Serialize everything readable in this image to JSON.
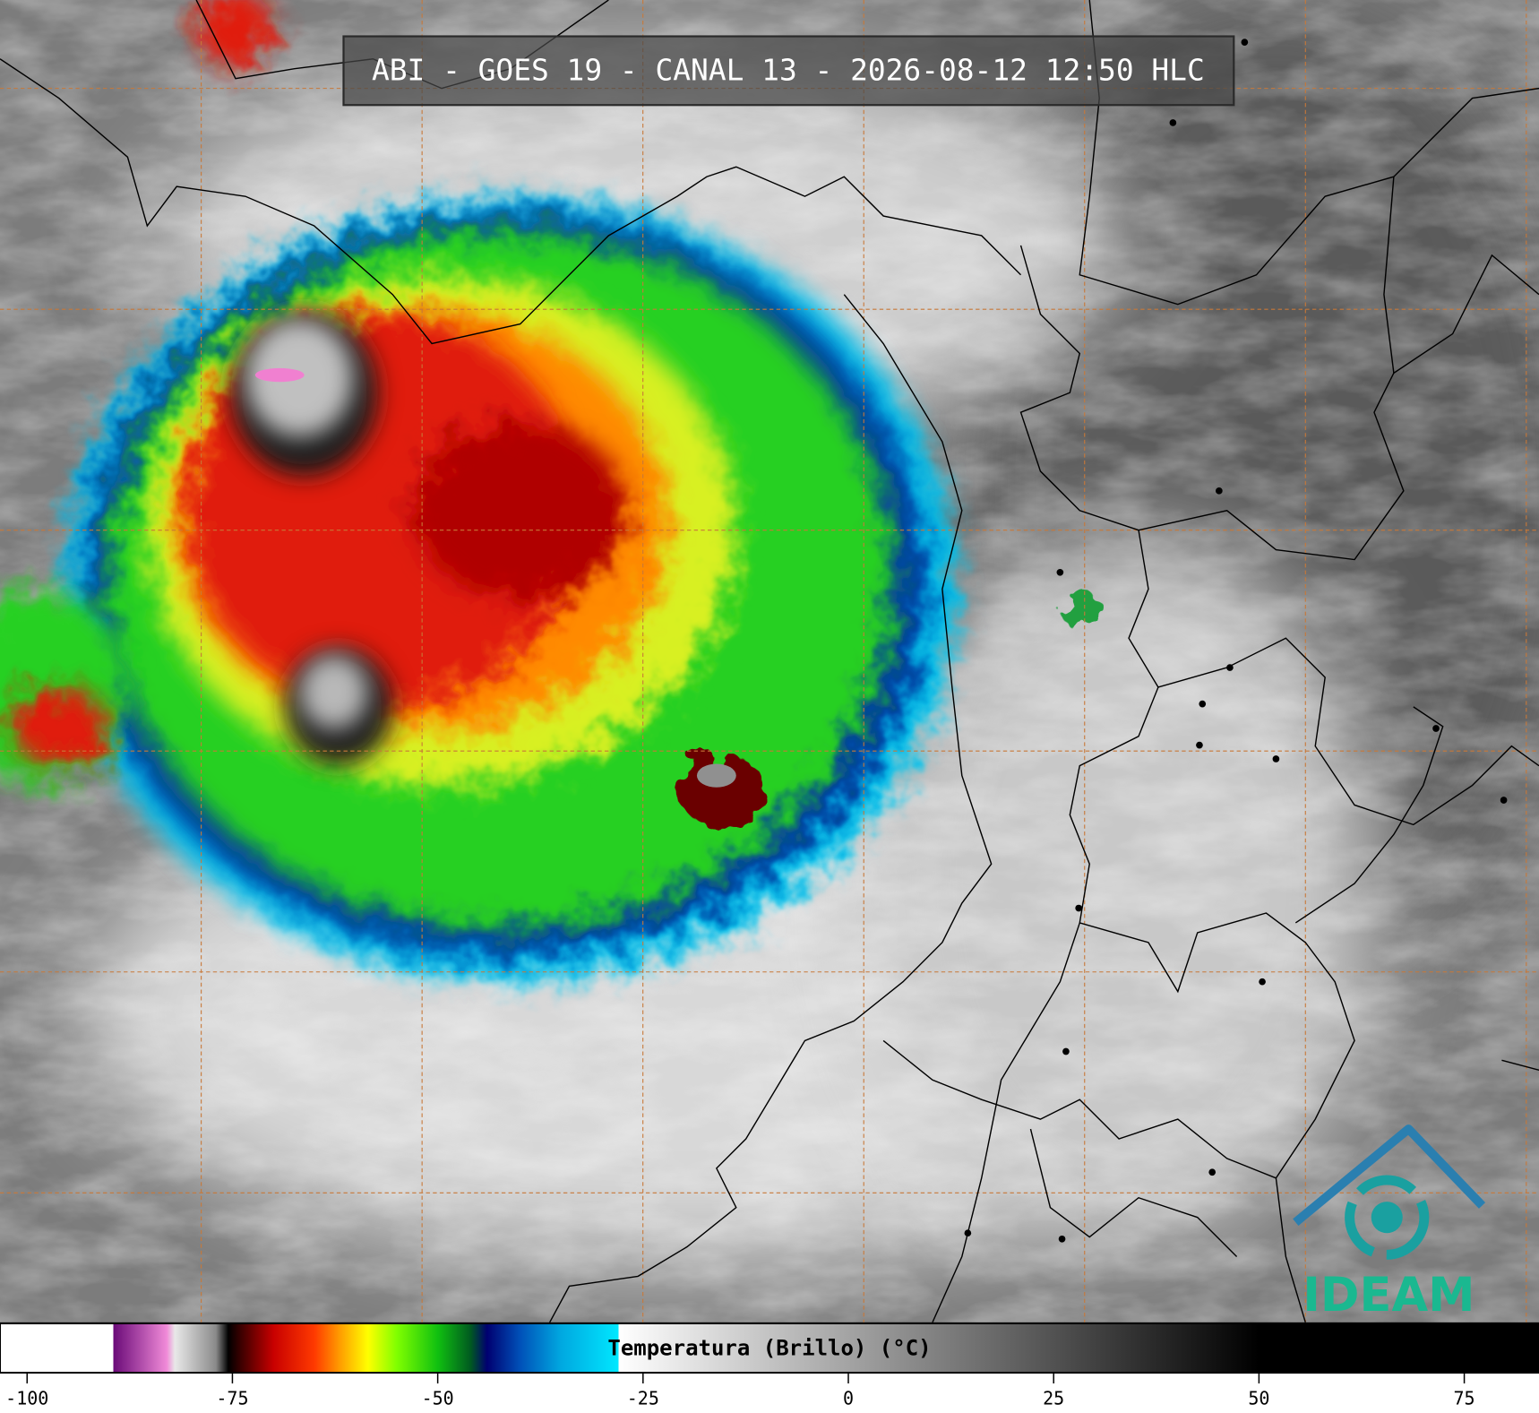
{
  "title": "ABI - GOES 19 - CANAL 13 - 2026-08-12 12:50 HLC",
  "logo": "IDEAM",
  "colorbar": {
    "label": "Temperatura (Brillo) (°C)",
    "xlim": [
      -103.3,
      84.1
    ],
    "xticks": [
      -100,
      -75,
      -50,
      -25,
      0,
      25,
      50,
      75
    ],
    "colorscale": [
      {
        "value": -103.3,
        "color": "#ffffff"
      },
      {
        "value": -89.5,
        "color": "#ffffff"
      },
      {
        "value": -89.5,
        "color": "#6a0a78"
      },
      {
        "value": -83,
        "color": "#f08ad8"
      },
      {
        "value": -82,
        "color": "#e8e8e8"
      },
      {
        "value": -77,
        "color": "#8a8a8a"
      },
      {
        "value": -75.5,
        "color": "#000000"
      },
      {
        "value": -74,
        "color": "#3a0000"
      },
      {
        "value": -70,
        "color": "#c80000"
      },
      {
        "value": -65,
        "color": "#ff3a00"
      },
      {
        "value": -62,
        "color": "#ff9a00"
      },
      {
        "value": -58.5,
        "color": "#ffff00"
      },
      {
        "value": -55,
        "color": "#80ff00"
      },
      {
        "value": -50,
        "color": "#10c010"
      },
      {
        "value": -46,
        "color": "#005a20"
      },
      {
        "value": -44,
        "color": "#000070"
      },
      {
        "value": -40,
        "color": "#0050b8"
      },
      {
        "value": -35,
        "color": "#00a8e0"
      },
      {
        "value": -28,
        "color": "#00e8ff"
      },
      {
        "value": -28,
        "color": "#ffffff"
      },
      {
        "value": 50,
        "color": "#000000"
      },
      {
        "value": 84.1,
        "color": "#000000"
      }
    ]
  }
}
